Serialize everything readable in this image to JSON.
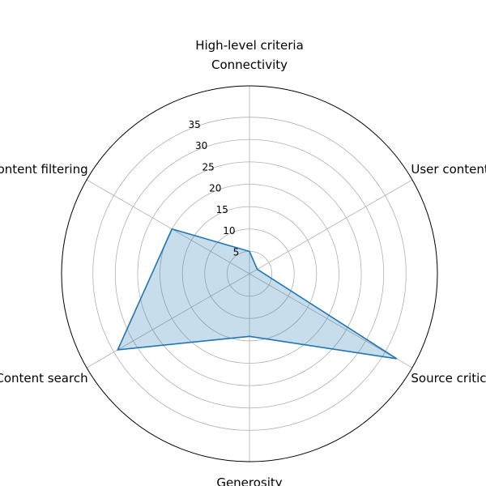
{
  "chart_data": {
    "type": "radar",
    "title": "",
    "categories": [
      "Connectivity",
      "User content management/e",
      "Source criticism",
      "Generosity",
      "Content search",
      "Content filtering"
    ],
    "series": [
      {
        "values": [
          5,
          2,
          38,
          14,
          34,
          20
        ],
        "color": "#1f77b4",
        "fill_opacity": 0.25
      }
    ],
    "axis_label": "High-level criteria",
    "rlim": [
      0,
      42
    ],
    "rticks": [
      5,
      10,
      15,
      20,
      25,
      30,
      35
    ],
    "grid": true,
    "legend": "none"
  }
}
